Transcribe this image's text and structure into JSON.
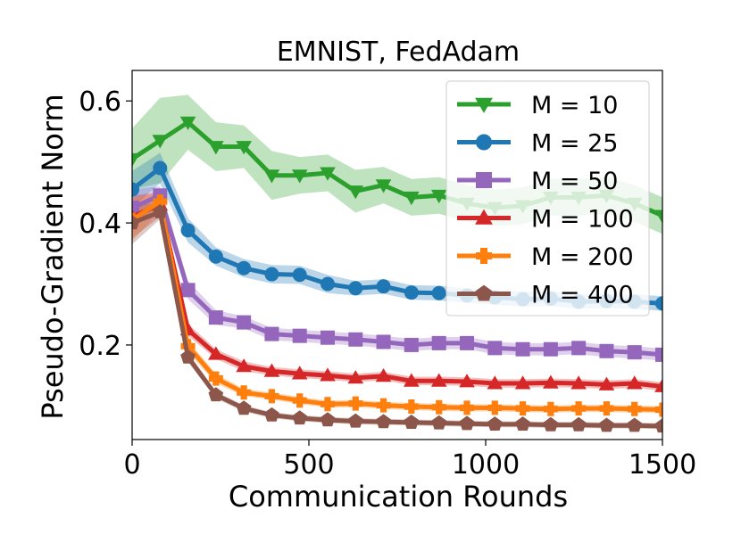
{
  "chart_data": {
    "type": "line",
    "title": "EMNIST, FedAdam",
    "xlabel": "Communication Rounds",
    "ylabel": "Pseudo-Gradient Norm",
    "xlim": [
      0,
      1500
    ],
    "ylim": [
      0.045,
      0.65
    ],
    "xticks": [
      0,
      500,
      1000,
      1500
    ],
    "xtick_labels": [
      "0",
      "500",
      "1000",
      "1500"
    ],
    "yticks": [
      0.2,
      0.4,
      0.6
    ],
    "ytick_labels": [
      "0.2",
      "0.4",
      "0.6"
    ],
    "grid": false,
    "legend_position": "upper-right",
    "shaded_band": true,
    "x": [
      0,
      79,
      158,
      237,
      316,
      395,
      474,
      553,
      632,
      711,
      790,
      868,
      947,
      1026,
      1105,
      1184,
      1263,
      1342,
      1421,
      1500
    ],
    "series": [
      {
        "name": "M = 10",
        "color": "#2ca02c",
        "marker": "triangle-down",
        "values": [
          0.505,
          0.535,
          0.565,
          0.525,
          0.525,
          0.478,
          0.478,
          0.482,
          0.452,
          0.462,
          0.442,
          0.445,
          0.432,
          0.425,
          0.428,
          0.442,
          0.442,
          0.445,
          0.432,
          0.412
        ],
        "band": [
          0.05,
          0.07,
          0.045,
          0.04,
          0.035,
          0.04,
          0.03,
          0.03,
          0.035,
          0.03,
          0.03,
          0.03,
          0.03,
          0.03,
          0.03,
          0.03,
          0.03,
          0.03,
          0.03,
          0.03
        ]
      },
      {
        "name": "M = 25",
        "color": "#1f77b4",
        "marker": "circle",
        "values": [
          0.455,
          0.49,
          0.388,
          0.345,
          0.326,
          0.316,
          0.315,
          0.3,
          0.293,
          0.296,
          0.286,
          0.285,
          0.281,
          0.278,
          0.275,
          0.276,
          0.271,
          0.272,
          0.271,
          0.268
        ],
        "band": [
          0.03,
          0.025,
          0.02,
          0.015,
          0.015,
          0.015,
          0.015,
          0.015,
          0.012,
          0.012,
          0.012,
          0.012,
          0.012,
          0.012,
          0.012,
          0.012,
          0.012,
          0.012,
          0.012,
          0.012
        ]
      },
      {
        "name": "M = 50",
        "color": "#9467bd",
        "marker": "square",
        "values": [
          0.425,
          0.445,
          0.29,
          0.245,
          0.237,
          0.218,
          0.215,
          0.212,
          0.209,
          0.205,
          0.2,
          0.203,
          0.203,
          0.195,
          0.193,
          0.193,
          0.195,
          0.19,
          0.188,
          0.184
        ],
        "band": [
          0.03,
          0.015,
          0.015,
          0.012,
          0.01,
          0.01,
          0.01,
          0.01,
          0.01,
          0.01,
          0.01,
          0.01,
          0.01,
          0.01,
          0.01,
          0.01,
          0.01,
          0.01,
          0.01,
          0.01
        ]
      },
      {
        "name": "M = 100",
        "color": "#d62728",
        "marker": "triangle-up",
        "values": [
          0.41,
          0.43,
          0.225,
          0.185,
          0.165,
          0.157,
          0.153,
          0.15,
          0.146,
          0.149,
          0.141,
          0.141,
          0.14,
          0.137,
          0.137,
          0.138,
          0.137,
          0.135,
          0.137,
          0.132
        ],
        "band": [
          0.035,
          0.02,
          0.01,
          0.008,
          0.008,
          0.007,
          0.007,
          0.007,
          0.007,
          0.007,
          0.007,
          0.007,
          0.007,
          0.007,
          0.007,
          0.007,
          0.007,
          0.007,
          0.007,
          0.007
        ]
      },
      {
        "name": "M = 200",
        "color": "#ff7f0e",
        "marker": "plus",
        "values": [
          0.405,
          0.435,
          0.198,
          0.145,
          0.122,
          0.116,
          0.109,
          0.103,
          0.104,
          0.101,
          0.099,
          0.098,
          0.097,
          0.097,
          0.096,
          0.095,
          0.096,
          0.096,
          0.095,
          0.094
        ],
        "band": [
          0.035,
          0.015,
          0.01,
          0.008,
          0.006,
          0.006,
          0.006,
          0.006,
          0.006,
          0.006,
          0.006,
          0.006,
          0.006,
          0.006,
          0.006,
          0.006,
          0.006,
          0.006,
          0.006,
          0.006
        ]
      },
      {
        "name": "M = 400",
        "color": "#8c564b",
        "marker": "pentagon",
        "values": [
          0.4,
          0.418,
          0.18,
          0.118,
          0.096,
          0.085,
          0.08,
          0.077,
          0.075,
          0.074,
          0.073,
          0.072,
          0.071,
          0.07,
          0.07,
          0.069,
          0.069,
          0.068,
          0.068,
          0.067
        ],
        "band": [
          0.035,
          0.012,
          0.008,
          0.006,
          0.005,
          0.005,
          0.005,
          0.005,
          0.005,
          0.005,
          0.005,
          0.005,
          0.005,
          0.005,
          0.005,
          0.005,
          0.005,
          0.005,
          0.005,
          0.005
        ]
      }
    ]
  }
}
